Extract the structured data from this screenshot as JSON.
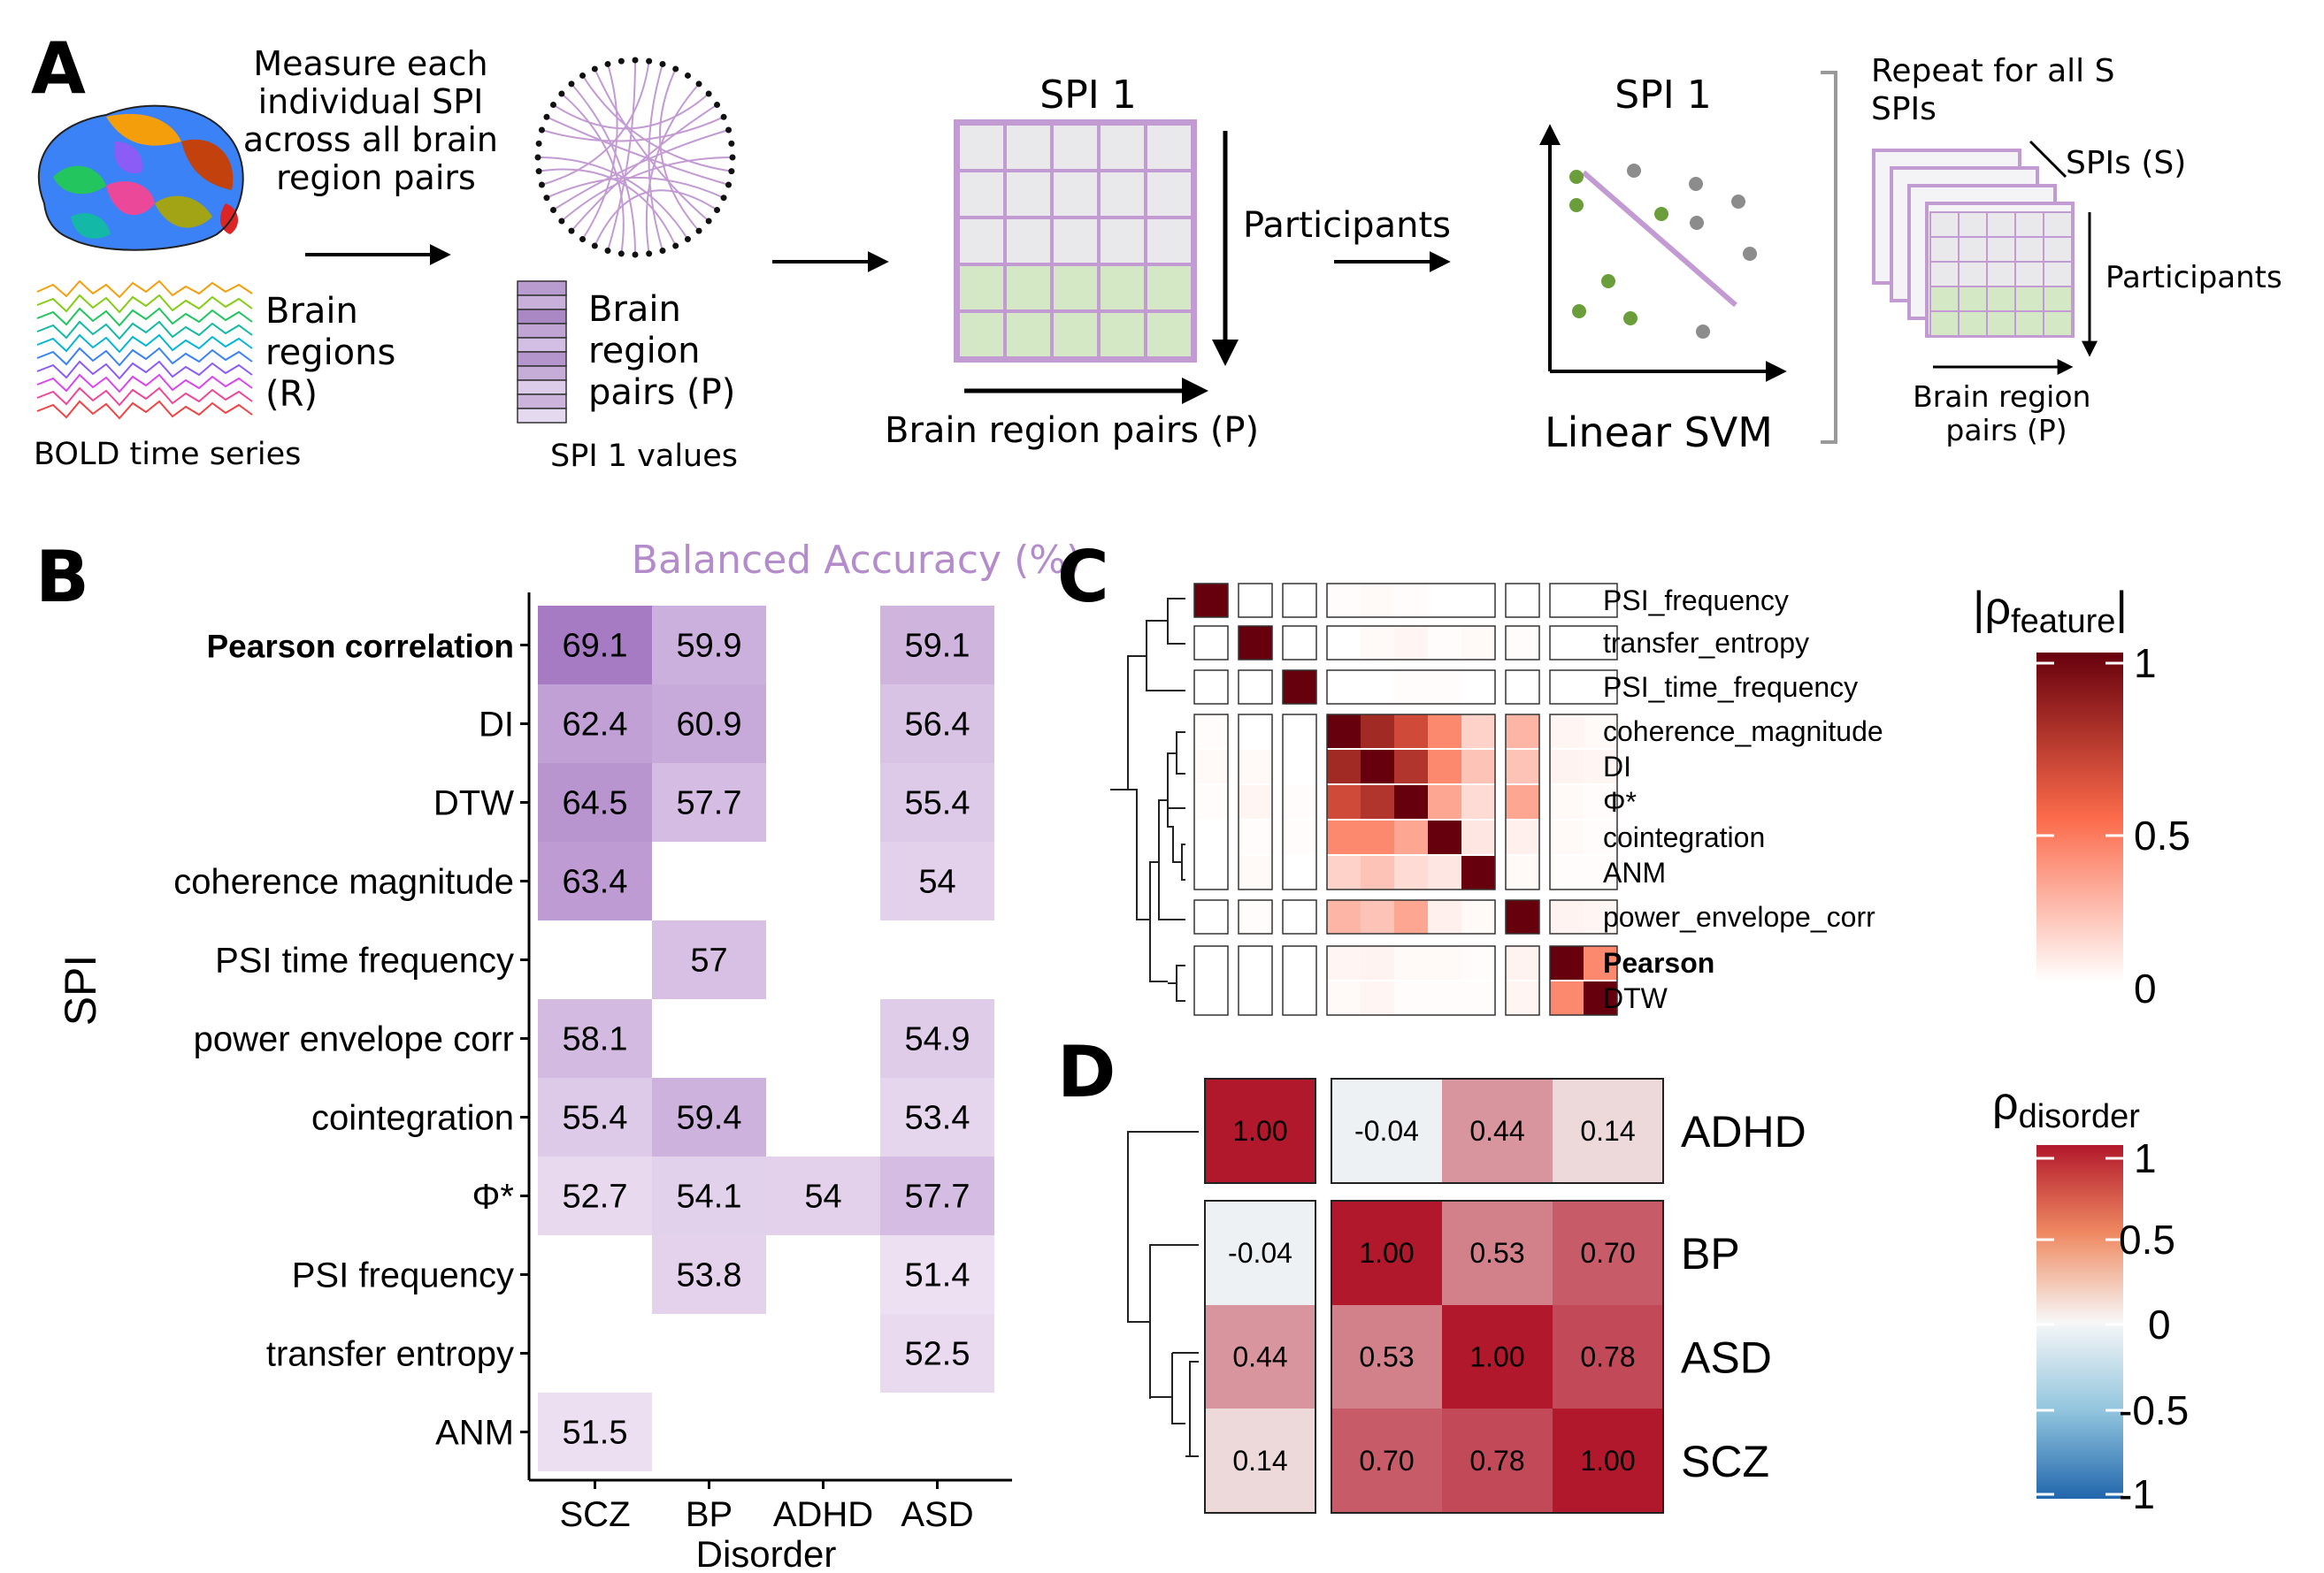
{
  "panel_a": {
    "letter": "A",
    "measure_text": [
      "Measure each",
      "individual SPI",
      "across all brain",
      "region pairs"
    ],
    "brain_regions_label": [
      "Brain",
      "regions",
      "(R)"
    ],
    "bold_label": "BOLD time series",
    "pairs_label": [
      "Brain",
      "region",
      "pairs (P)"
    ],
    "spi_values_label": "SPI 1 values",
    "matrix_title": "SPI 1",
    "participants_label": "Participants",
    "matrix_xlabel": "Brain region pairs (P)",
    "svm_title": "SPI 1",
    "svm_label": "Linear SVM",
    "repeat_text": [
      "Repeat for all S",
      "SPIs"
    ],
    "spis_label": "SPIs (S)",
    "stack_participants": "Participants",
    "stack_xlabel": [
      "Brain region",
      "pairs (P)"
    ],
    "colors": {
      "purple": "#c39bd3",
      "green": "#d5e8c6",
      "gray": "#e9e9eb",
      "dot_green": "#6a9e3a",
      "dot_gray": "#8c8c8c"
    }
  },
  "panel_b": {
    "letter": "B",
    "chart_data": {
      "type": "heatmap",
      "title": "Balanced Accuracy (%)",
      "xlabel": "Disorder",
      "ylabel": "SPI",
      "columns": [
        "SCZ",
        "BP",
        "ADHD",
        "ASD"
      ],
      "rows": [
        "Pearson correlation",
        "DI",
        "DTW",
        "coherence magnitude",
        "PSI time frequency",
        "power envelope corr",
        "cointegration",
        "Φ*",
        "PSI frequency",
        "transfer entropy",
        "ANM"
      ],
      "bold_rows": [
        "Pearson correlation"
      ],
      "values": [
        [
          69.1,
          59.9,
          null,
          59.1
        ],
        [
          62.4,
          60.9,
          null,
          56.4
        ],
        [
          64.5,
          57.7,
          null,
          55.4
        ],
        [
          63.4,
          null,
          null,
          54
        ],
        [
          null,
          57,
          null,
          null
        ],
        [
          58.1,
          null,
          null,
          54.9
        ],
        [
          55.4,
          59.4,
          null,
          53.4
        ],
        [
          52.7,
          54.1,
          54,
          57.7
        ],
        [
          null,
          53.8,
          null,
          51.4
        ],
        [
          null,
          null,
          null,
          52.5
        ],
        [
          51.5,
          null,
          null,
          null
        ]
      ],
      "color_low": "#ede0f2",
      "color_high": "#a77bc4"
    }
  },
  "panel_c": {
    "letter": "C",
    "chart_data": {
      "type": "heatmap",
      "labels": [
        "PSI_frequency",
        "transfer_entropy",
        "PSI_time_frequency",
        "coherence_magnitude",
        "DI",
        "Φ*",
        "cointegration",
        "ANM",
        "power_envelope_corr",
        "Pearson",
        "DTW"
      ],
      "bold_labels": [
        "Pearson"
      ],
      "groups": [
        1,
        1,
        1,
        5,
        1,
        2
      ],
      "values": [
        [
          1,
          0,
          0,
          0.01,
          0.02,
          0.01,
          0,
          0,
          0,
          0,
          0
        ],
        [
          0,
          1,
          0,
          0,
          0.02,
          0.03,
          0.01,
          0.02,
          0.01,
          0,
          0
        ],
        [
          0,
          0,
          1,
          0,
          0,
          0.01,
          0.01,
          0,
          0,
          0,
          0
        ],
        [
          0.01,
          0,
          0,
          1,
          0.8,
          0.65,
          0.4,
          0.15,
          0.25,
          0.03,
          0.02
        ],
        [
          0.02,
          0.02,
          0,
          0.8,
          1,
          0.75,
          0.4,
          0.2,
          0.2,
          0.04,
          0.03
        ],
        [
          0.01,
          0.03,
          0.01,
          0.65,
          0.75,
          1,
          0.3,
          0.12,
          0.3,
          0.02,
          0.01
        ],
        [
          0,
          0.01,
          0.01,
          0.4,
          0.4,
          0.3,
          1,
          0.08,
          0.05,
          0.02,
          0.01
        ],
        [
          0,
          0.02,
          0,
          0.15,
          0.2,
          0.12,
          0.08,
          1,
          0.02,
          0.01,
          0.01
        ],
        [
          0,
          0.01,
          0,
          0.25,
          0.2,
          0.3,
          0.05,
          0.02,
          1,
          0.04,
          0.03
        ],
        [
          0,
          0,
          0,
          0.03,
          0.04,
          0.02,
          0.02,
          0.01,
          0.04,
          1,
          0.4
        ],
        [
          0,
          0,
          0,
          0.02,
          0.03,
          0.01,
          0.01,
          0.01,
          0.03,
          0.4,
          1
        ]
      ],
      "legend_title": "|ρ",
      "legend_sub": "feature",
      "legend_ticks": [
        "1",
        "0.5",
        "0"
      ],
      "colorscale": [
        "#ffffff",
        "#fb6a4a",
        "#67000d"
      ]
    }
  },
  "panel_d": {
    "letter": "D",
    "chart_data": {
      "type": "heatmap",
      "labels": [
        "ADHD",
        "BP",
        "ASD",
        "SCZ"
      ],
      "values": [
        [
          1.0,
          -0.04,
          0.44,
          0.14
        ],
        [
          -0.04,
          1.0,
          0.53,
          0.7
        ],
        [
          0.44,
          0.53,
          1.0,
          0.78
        ],
        [
          0.14,
          0.7,
          0.78,
          1.0
        ]
      ],
      "value_labels": [
        [
          "1.00",
          "-0.04",
          "0.44",
          "0.14"
        ],
        [
          "-0.04",
          "1.00",
          "0.53",
          "0.70"
        ],
        [
          "0.44",
          "0.53",
          "1.00",
          "0.78"
        ],
        [
          "0.14",
          "0.70",
          "0.78",
          "1.00"
        ]
      ],
      "legend_title": "ρ",
      "legend_sub": "disorder",
      "legend_ticks": [
        "1",
        "0.5",
        "0",
        "-0.5",
        "-1"
      ],
      "colorscale": [
        "#2166ac",
        "#f7f7f7",
        "#b2182b"
      ]
    }
  }
}
